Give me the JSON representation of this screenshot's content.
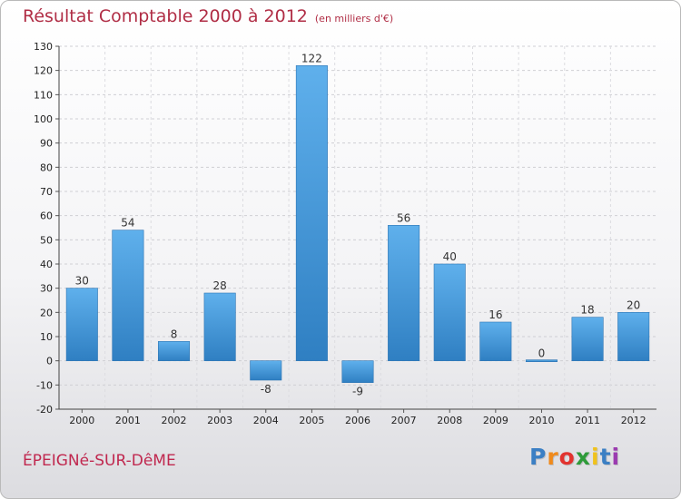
{
  "header": {
    "title": "Résultat Comptable 2000 à 2012",
    "subtitle": "(en milliers d'€)"
  },
  "footer": {
    "commune": "ÉPEIGNé-SUR-DêME",
    "logo_letters": [
      "P",
      "r",
      "o",
      "x",
      "i",
      "t",
      "i"
    ]
  },
  "colors": {
    "positive_bar": "#3a8fd6",
    "negative_bar": "#3a8fd6",
    "logo": [
      "#3b7fc4",
      "#f08a1c",
      "#e2332f",
      "#2e9b3a",
      "#f0c21c",
      "#3b7fc4",
      "#9b3bb0"
    ]
  },
  "chart_data": {
    "type": "bar",
    "categories": [
      "2000",
      "2001",
      "2002",
      "2003",
      "2004",
      "2005",
      "2006",
      "2007",
      "2008",
      "2009",
      "2010",
      "2011",
      "2012"
    ],
    "values": [
      30,
      54,
      8,
      28,
      -8,
      122,
      -9,
      56,
      40,
      16,
      0,
      18,
      20
    ],
    "yticks": [
      -20,
      -10,
      0,
      10,
      20,
      30,
      40,
      50,
      60,
      70,
      80,
      90,
      100,
      110,
      120,
      130
    ],
    "ylim": [
      -20,
      130
    ],
    "grid": true,
    "title": "Résultat Comptable 2000 à 2012",
    "xlabel": "",
    "ylabel": ""
  }
}
